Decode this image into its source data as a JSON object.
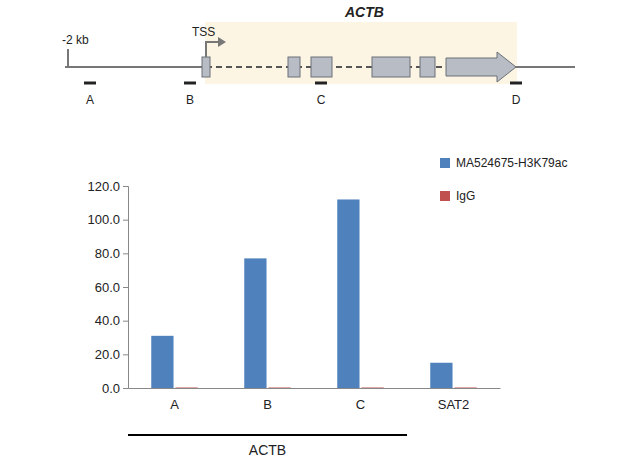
{
  "chart_data": {
    "type": "bar",
    "categories": [
      "A",
      "B",
      "C",
      "SAT2"
    ],
    "series": [
      {
        "name": "MA524675-H3K79ac",
        "color": "#4f81bd",
        "values": [
          31,
          77,
          112,
          15
        ]
      },
      {
        "name": "IgG",
        "color": "#c0504d",
        "values": [
          0.3,
          0.3,
          0.3,
          0.3
        ]
      }
    ],
    "ylim": [
      0,
      120
    ],
    "yticks": [
      {
        "value": 0,
        "label": "0.0"
      },
      {
        "value": 20,
        "label": "20.0"
      },
      {
        "value": 40,
        "label": "40.0"
      },
      {
        "value": 60,
        "label": "60.0"
      },
      {
        "value": 80,
        "label": "80.0"
      },
      {
        "value": 100,
        "label": "100.0"
      },
      {
        "value": 120,
        "label": "120.0"
      }
    ],
    "legend": "top-right",
    "annotations": [
      {
        "text": "ACTB",
        "categories": [
          "A",
          "B",
          "C"
        ]
      }
    ]
  },
  "diagram": {
    "gene": "ACTB",
    "upstream_mark": "-2 kb",
    "tss": "TSS",
    "amplicons": [
      "A",
      "B",
      "C",
      "D"
    ]
  }
}
